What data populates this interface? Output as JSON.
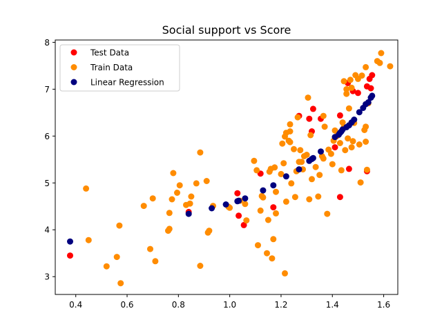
{
  "chart_data": {
    "type": "scatter",
    "title": "Social support vs Score",
    "xlabel": "",
    "ylabel": "",
    "xlim": [
      0.32,
      1.655
    ],
    "ylim": [
      2.62,
      8.05
    ],
    "xticks": [
      0.4,
      0.6,
      0.8,
      1.0,
      1.2,
      1.4,
      1.6
    ],
    "xtick_labels": [
      "0.4",
      "0.6",
      "0.8",
      "1.0",
      "1.2",
      "1.4",
      "1.6"
    ],
    "yticks": [
      3,
      4,
      5,
      6,
      7,
      8
    ],
    "ytick_labels": [
      "3",
      "4",
      "5",
      "6",
      "7",
      "8"
    ],
    "grid": false,
    "legend_position": "top-left",
    "series": [
      {
        "name": "Test Data",
        "color": "#ff0000",
        "points": [
          [
            0.378,
            3.45
          ],
          [
            0.84,
            4.38
          ],
          [
            1.03,
            4.78
          ],
          [
            1.035,
            4.3
          ],
          [
            1.055,
            4.1
          ],
          [
            1.12,
            5.2
          ],
          [
            1.17,
            4.48
          ],
          [
            1.27,
            6.43
          ],
          [
            1.31,
            6.37
          ],
          [
            1.32,
            6.1
          ],
          [
            1.325,
            6.58
          ],
          [
            1.355,
            6.37
          ],
          [
            1.43,
            4.7
          ],
          [
            1.41,
            5.76
          ],
          [
            1.43,
            6.44
          ],
          [
            1.46,
            7.13
          ],
          [
            1.465,
            5.3
          ],
          [
            1.48,
            6.96
          ],
          [
            1.5,
            6.92
          ],
          [
            1.535,
            7.06
          ],
          [
            1.55,
            7.02
          ],
          [
            1.555,
            7.3
          ],
          [
            1.545,
            7.22
          ],
          [
            1.535,
            5.25
          ]
        ]
      },
      {
        "name": "Train Data",
        "color": "#ff8c00",
        "points": [
          [
            0.44,
            4.88
          ],
          [
            0.45,
            3.78
          ],
          [
            0.52,
            3.22
          ],
          [
            0.56,
            3.42
          ],
          [
            0.57,
            4.09
          ],
          [
            0.575,
            2.86
          ],
          [
            0.665,
            4.51
          ],
          [
            0.69,
            3.59
          ],
          [
            0.7,
            4.67
          ],
          [
            0.71,
            3.33
          ],
          [
            0.76,
            3.98
          ],
          [
            0.765,
            4.36
          ],
          [
            0.765,
            4.02
          ],
          [
            0.775,
            4.65
          ],
          [
            0.78,
            5.21
          ],
          [
            0.795,
            4.79
          ],
          [
            0.805,
            4.95
          ],
          [
            0.83,
            4.53
          ],
          [
            0.845,
            4.56
          ],
          [
            0.85,
            4.71
          ],
          [
            0.87,
            4.99
          ],
          [
            0.885,
            3.23
          ],
          [
            0.885,
            5.65
          ],
          [
            0.91,
            5.04
          ],
          [
            0.915,
            3.94
          ],
          [
            0.92,
            3.98
          ],
          [
            0.935,
            4.51
          ],
          [
            0.995,
            4.49
          ],
          [
            1.0,
            4.47
          ],
          [
            1.04,
            4.62
          ],
          [
            1.06,
            4.55
          ],
          [
            1.065,
            4.2
          ],
          [
            1.095,
            5.47
          ],
          [
            1.105,
            5.27
          ],
          [
            1.11,
            3.67
          ],
          [
            1.12,
            4.41
          ],
          [
            1.125,
            4.72
          ],
          [
            1.13,
            4.69
          ],
          [
            1.145,
            3.5
          ],
          [
            1.15,
            4.21
          ],
          [
            1.155,
            5.24
          ],
          [
            1.16,
            5.3
          ],
          [
            1.165,
            3.39
          ],
          [
            1.17,
            3.8
          ],
          [
            1.175,
            5.33
          ],
          [
            1.18,
            4.35
          ],
          [
            1.18,
            4.81
          ],
          [
            1.2,
            5.19
          ],
          [
            1.205,
            5.84
          ],
          [
            1.21,
            5.42
          ],
          [
            1.215,
            3.07
          ],
          [
            1.215,
            5.99
          ],
          [
            1.22,
            4.6
          ],
          [
            1.22,
            6.07
          ],
          [
            1.23,
            5.9
          ],
          [
            1.235,
            6.1
          ],
          [
            1.235,
            6.25
          ],
          [
            1.235,
            5.87
          ],
          [
            1.24,
            4.99
          ],
          [
            1.25,
            5.72
          ],
          [
            1.255,
            4.7
          ],
          [
            1.26,
            5.25
          ],
          [
            1.265,
            6.4
          ],
          [
            1.27,
            5.45
          ],
          [
            1.275,
            5.7
          ],
          [
            1.28,
            5.45
          ],
          [
            1.285,
            5.29
          ],
          [
            1.29,
            5.57
          ],
          [
            1.3,
            5.6
          ],
          [
            1.305,
            6.82
          ],
          [
            1.31,
            4.65
          ],
          [
            1.315,
            6.02
          ],
          [
            1.32,
            5.08
          ],
          [
            1.335,
            5.34
          ],
          [
            1.345,
            4.71
          ],
          [
            1.35,
            5.17
          ],
          [
            1.36,
            5.57
          ],
          [
            1.365,
            5.52
          ],
          [
            1.365,
            6.43
          ],
          [
            1.37,
            6.2
          ],
          [
            1.38,
            4.34
          ],
          [
            1.385,
            5.71
          ],
          [
            1.395,
            5.62
          ],
          [
            1.4,
            5.4
          ],
          [
            1.405,
            5.9
          ],
          [
            1.41,
            6.12
          ],
          [
            1.415,
            5.99
          ],
          [
            1.42,
            6.01
          ],
          [
            1.425,
            6.05
          ],
          [
            1.43,
            5.85
          ],
          [
            1.435,
            5.27
          ],
          [
            1.44,
            6.29
          ],
          [
            1.445,
            7.17
          ],
          [
            1.445,
            6.19
          ],
          [
            1.45,
            5.7
          ],
          [
            1.455,
            6.9
          ],
          [
            1.455,
            7.0
          ],
          [
            1.46,
            5.95
          ],
          [
            1.465,
            6.59
          ],
          [
            1.47,
            7.2
          ],
          [
            1.475,
            5.76
          ],
          [
            1.475,
            7.03
          ],
          [
            1.48,
            5.89
          ],
          [
            1.485,
            6.28
          ],
          [
            1.49,
            7.3
          ],
          [
            1.5,
            7.22
          ],
          [
            1.505,
            5.82
          ],
          [
            1.51,
            5.01
          ],
          [
            1.515,
            7.29
          ],
          [
            1.525,
            6.13
          ],
          [
            1.53,
            7.47
          ],
          [
            1.53,
            6.2
          ],
          [
            1.53,
            5.88
          ],
          [
            1.535,
            5.28
          ],
          [
            1.54,
            6.7
          ],
          [
            1.575,
            7.6
          ],
          [
            1.585,
            7.56
          ],
          [
            1.59,
            7.77
          ],
          [
            1.625,
            7.49
          ]
        ]
      },
      {
        "name": "Linear Regression",
        "color": "#00007f",
        "points": [
          [
            0.378,
            3.75
          ],
          [
            0.84,
            4.34
          ],
          [
            0.93,
            4.46
          ],
          [
            0.985,
            4.54
          ],
          [
            1.03,
            4.61
          ],
          [
            1.035,
            4.62
          ],
          [
            1.06,
            4.67
          ],
          [
            1.13,
            4.84
          ],
          [
            1.17,
            4.95
          ],
          [
            1.22,
            5.14
          ],
          [
            1.27,
            5.29
          ],
          [
            1.31,
            5.47
          ],
          [
            1.32,
            5.51
          ],
          [
            1.325,
            5.53
          ],
          [
            1.355,
            5.67
          ],
          [
            1.41,
            5.98
          ],
          [
            1.425,
            6.03
          ],
          [
            1.43,
            6.07
          ],
          [
            1.435,
            6.1
          ],
          [
            1.44,
            6.14
          ],
          [
            1.455,
            6.19
          ],
          [
            1.465,
            6.23
          ],
          [
            1.475,
            6.29
          ],
          [
            1.485,
            6.35
          ],
          [
            1.505,
            6.51
          ],
          [
            1.52,
            6.6
          ],
          [
            1.53,
            6.68
          ],
          [
            1.54,
            6.72
          ],
          [
            1.55,
            6.82
          ],
          [
            1.555,
            6.86
          ]
        ]
      }
    ]
  }
}
